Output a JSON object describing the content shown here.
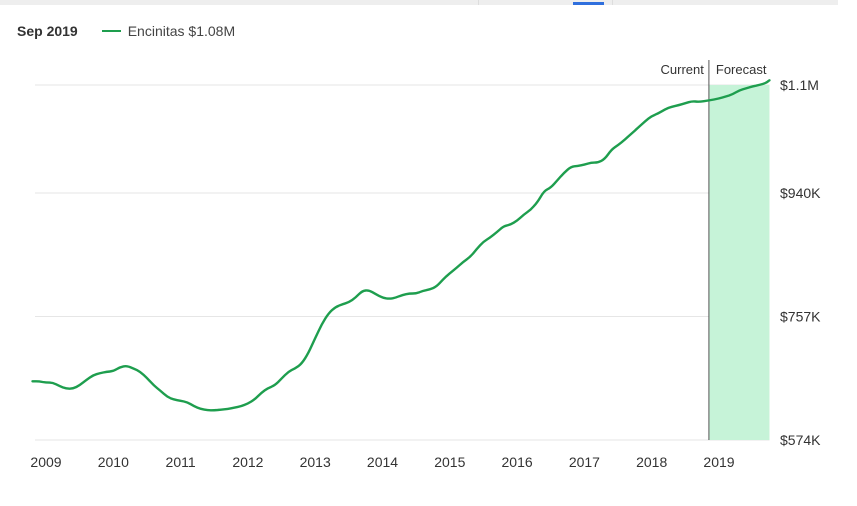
{
  "header": {
    "period": "Sep 2019",
    "legend_label": "Encinitas $1.08M"
  },
  "markers": {
    "current_label": "Current",
    "forecast_label": "Forecast"
  },
  "colors": {
    "series": "#1e9e4e",
    "forecast_band": "#c6f3d8",
    "grid": "#e6e6e6"
  },
  "chart_data": {
    "type": "line",
    "title": "",
    "xlabel": "",
    "ylabel": "",
    "x_ticks": [
      "2009",
      "2010",
      "2011",
      "2012",
      "2013",
      "2014",
      "2015",
      "2016",
      "2017",
      "2018",
      "2019"
    ],
    "y_ticks": [
      {
        "value": 574000,
        "label": "$574K"
      },
      {
        "value": 757000,
        "label": "$757K"
      },
      {
        "value": 940000,
        "label": "$940K"
      },
      {
        "value": 1100000,
        "label": "$1.1M"
      }
    ],
    "ylim": [
      574000,
      1120000
    ],
    "xlim": [
      2008.8,
      2019.75
    ],
    "current_x": 2018.85,
    "forecast_range": [
      2018.85,
      2019.75
    ],
    "grid": "horizontal",
    "series": [
      {
        "name": "Encinitas",
        "x": [
          2008.8,
          2008.9,
          2009.0,
          2009.1,
          2009.2,
          2009.3,
          2009.4,
          2009.5,
          2009.6,
          2009.7,
          2009.8,
          2009.9,
          2010.0,
          2010.1,
          2010.2,
          2010.3,
          2010.4,
          2010.5,
          2010.6,
          2010.7,
          2010.8,
          2010.9,
          2011.0,
          2011.1,
          2011.2,
          2011.3,
          2011.4,
          2011.5,
          2011.6,
          2011.7,
          2011.8,
          2011.9,
          2012.0,
          2012.1,
          2012.2,
          2012.3,
          2012.4,
          2012.5,
          2012.6,
          2012.7,
          2012.8,
          2012.9,
          2013.0,
          2013.1,
          2013.2,
          2013.3,
          2013.4,
          2013.5,
          2013.6,
          2013.7,
          2013.8,
          2013.9,
          2014.0,
          2014.1,
          2014.2,
          2014.3,
          2014.4,
          2014.5,
          2014.6,
          2014.7,
          2014.8,
          2014.9,
          2015.0,
          2015.1,
          2015.2,
          2015.3,
          2015.4,
          2015.5,
          2015.6,
          2015.7,
          2015.8,
          2015.9,
          2016.0,
          2016.1,
          2016.2,
          2016.3,
          2016.4,
          2016.5,
          2016.6,
          2016.7,
          2016.8,
          2016.9,
          2017.0,
          2017.1,
          2017.2,
          2017.3,
          2017.4,
          2017.5,
          2017.6,
          2017.7,
          2017.8,
          2017.9,
          2018.0,
          2018.1,
          2018.2,
          2018.3,
          2018.4,
          2018.5,
          2018.6,
          2018.7,
          2018.85,
          2019.0,
          2019.1,
          2019.2,
          2019.3,
          2019.4,
          2019.5,
          2019.6,
          2019.7,
          2019.75
        ],
        "values": [
          661000,
          661000,
          659000,
          659000,
          654000,
          650000,
          650000,
          655000,
          663000,
          670000,
          673000,
          675000,
          676000,
          682000,
          684000,
          680000,
          675000,
          666000,
          655000,
          647000,
          638000,
          634000,
          632000,
          630000,
          624000,
          620000,
          618000,
          618000,
          619000,
          620000,
          622000,
          624000,
          628000,
          634000,
          644000,
          651000,
          655000,
          665000,
          675000,
          680000,
          687000,
          703000,
          725000,
          746000,
          762000,
          771000,
          775000,
          778000,
          785000,
          795000,
          796000,
          790000,
          785000,
          783000,
          785000,
          789000,
          791000,
          791000,
          795000,
          797000,
          801000,
          812000,
          821000,
          829000,
          838000,
          845000,
          857000,
          868000,
          874000,
          882000,
          891000,
          893000,
          899000,
          908000,
          915000,
          926000,
          943000,
          948000,
          959000,
          970000,
          979000,
          980000,
          982000,
          985000,
          985000,
          990000,
          1004000,
          1011000,
          1019000,
          1028000,
          1037000,
          1046000,
          1054000,
          1058000,
          1064000,
          1068000,
          1070000,
          1073000,
          1076000,
          1075000,
          1077000,
          1080000,
          1083000,
          1086000,
          1092000,
          1095000,
          1098000,
          1100000,
          1103000,
          1107000
        ]
      }
    ]
  }
}
